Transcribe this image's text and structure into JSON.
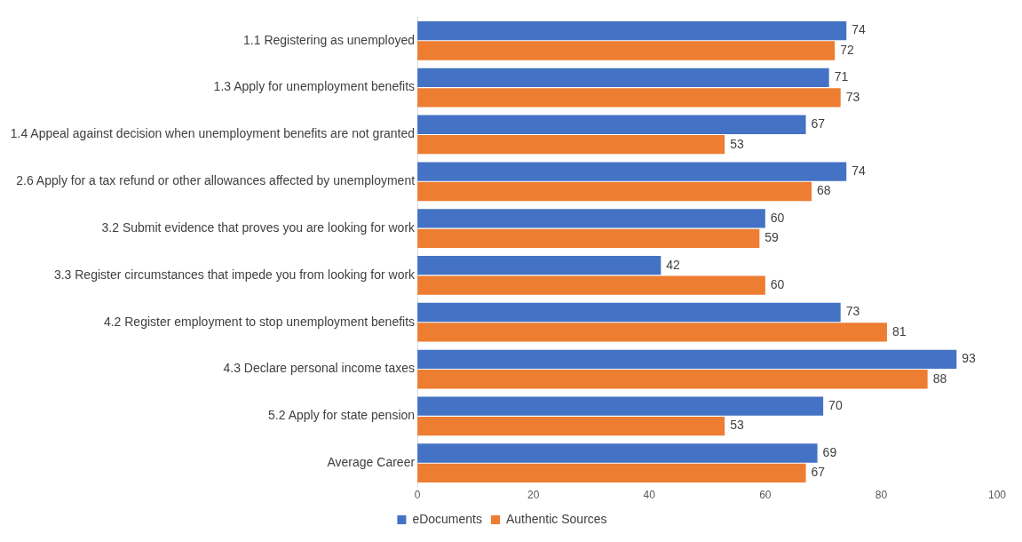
{
  "chart_data": {
    "type": "bar",
    "orientation": "horizontal",
    "categories": [
      "1.1 Registering as unemployed",
      "1.3 Apply for unemployment benefits",
      "1.4 Appeal against decision when unemployment benefits are not granted",
      "2.6 Apply for a tax refund or other allowances affected by unemployment",
      "3.2 Submit evidence that proves you are looking for work",
      "3.3 Register circumstances that impede you from looking for work",
      "4.2 Register employment to stop unemployment benefits",
      "4.3 Declare personal income taxes",
      "5.2 Apply for state pension",
      "Average Career"
    ],
    "series": [
      {
        "name": "eDocuments",
        "color": "#4472c4",
        "values": [
          74,
          71,
          67,
          74,
          60,
          42,
          73,
          93,
          70,
          69
        ]
      },
      {
        "name": "Authentic Sources",
        "color": "#ed7d31",
        "values": [
          72,
          73,
          53,
          68,
          59,
          60,
          81,
          88,
          53,
          67
        ]
      }
    ],
    "xlim": [
      0,
      100
    ],
    "xticks": [
      0,
      20,
      40,
      60,
      80,
      100
    ],
    "grid": false,
    "legend": "bottom",
    "data_labels": true
  }
}
